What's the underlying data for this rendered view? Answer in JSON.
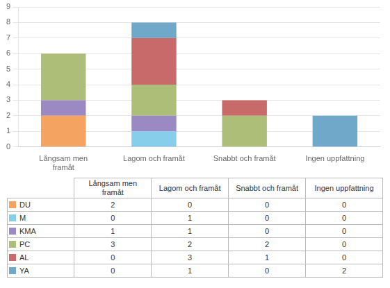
{
  "chart_data": {
    "type": "bar",
    "stacked": true,
    "categories": [
      "Långsam men\nframåt",
      "Lagom och framåt",
      "Snabbt och framåt",
      "Ingen uppfattning"
    ],
    "series": [
      {
        "name": "DU",
        "color": "#F4A460",
        "values": [
          2,
          0,
          0,
          0
        ]
      },
      {
        "name": "M",
        "color": "#87CEEB",
        "values": [
          0,
          1,
          0,
          0
        ]
      },
      {
        "name": "KMA",
        "color": "#9B89C4",
        "values": [
          1,
          1,
          0,
          0
        ]
      },
      {
        "name": "PC",
        "color": "#ADBE78",
        "values": [
          3,
          2,
          2,
          0
        ]
      },
      {
        "name": "AL",
        "color": "#C96A6A",
        "values": [
          0,
          3,
          1,
          0
        ]
      },
      {
        "name": "YA",
        "color": "#6FA8C9",
        "values": [
          0,
          1,
          0,
          2
        ]
      }
    ],
    "ylim": [
      0,
      9
    ],
    "yticks": [
      0,
      1,
      2,
      3,
      4,
      5,
      6,
      7,
      8,
      9
    ],
    "grid": true
  }
}
